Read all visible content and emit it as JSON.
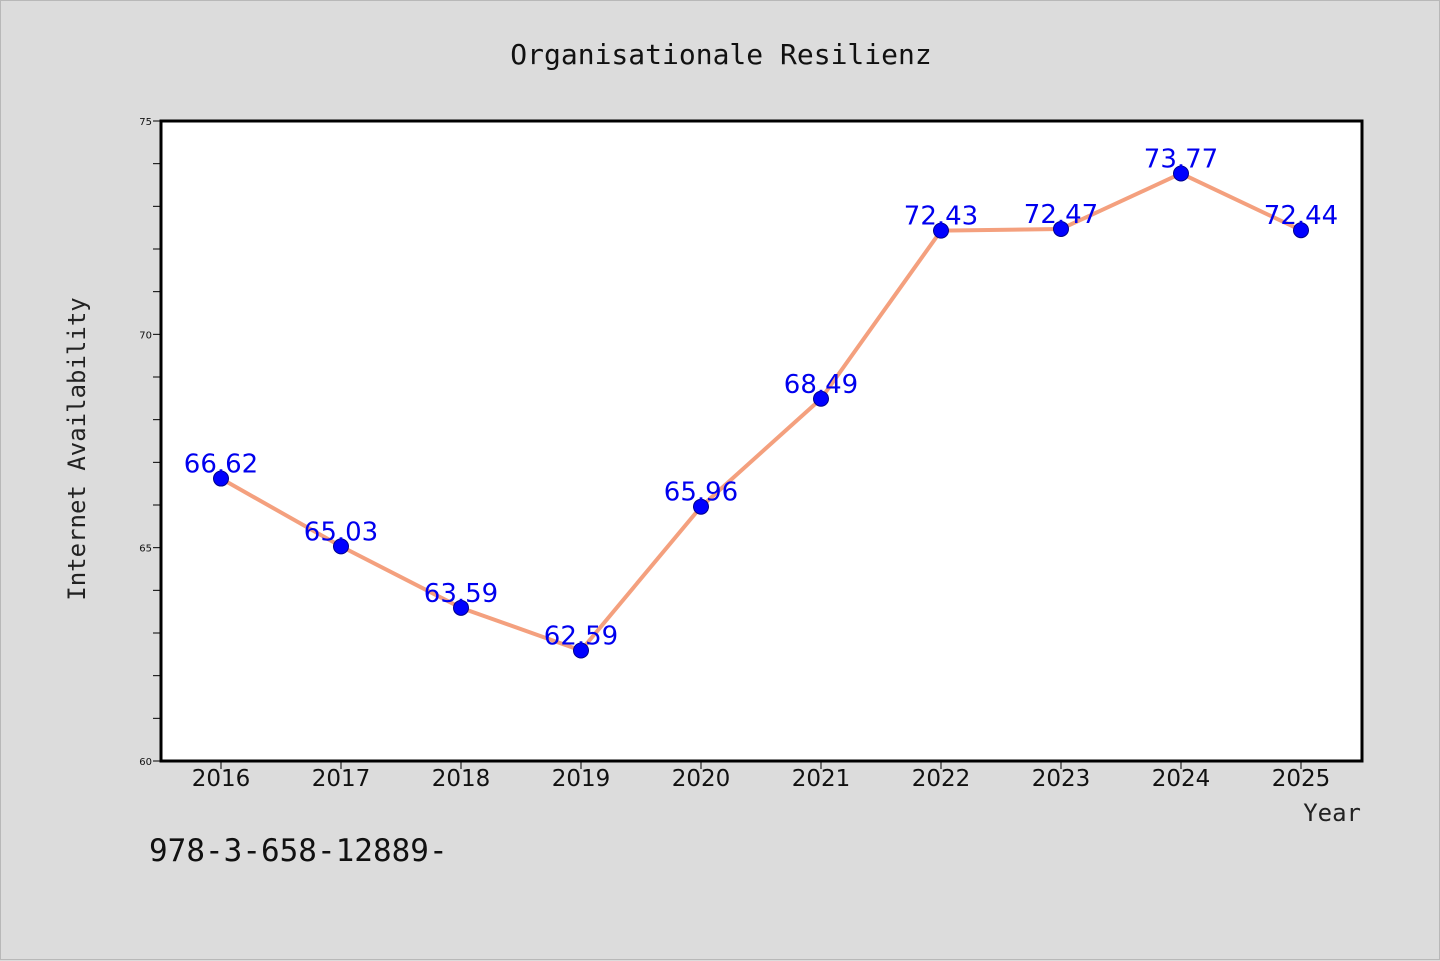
{
  "chart_data": {
    "type": "line",
    "title": "Organisationale Resilienz",
    "xlabel": "Year",
    "ylabel": "Internet Availability",
    "categories": [
      "2016",
      "2017",
      "2018",
      "2019",
      "2020",
      "2021",
      "2022",
      "2023",
      "2024",
      "2025"
    ],
    "series": [
      {
        "values": [
          66.62,
          65.03,
          63.59,
          62.59,
          65.96,
          68.49,
          72.43,
          72.47,
          73.77,
          72.44
        ],
        "line_color": "#f4a07e",
        "marker_color": "#0000ff"
      }
    ],
    "data_labels": [
      "66.62",
      "65.03",
      "63.59",
      "62.59",
      "65.96",
      "68.49",
      "72.43",
      "72.47",
      "73.77",
      "72.44"
    ],
    "ylim": [
      60,
      75
    ],
    "yticks": [
      "60",
      "65",
      "70",
      "75"
    ],
    "grid": false,
    "legend": "none",
    "background_color": "#dcdcdc",
    "plot_background": "#ffffff",
    "label_color": "#0000ee"
  },
  "footnote": "978-3-658-12889-"
}
